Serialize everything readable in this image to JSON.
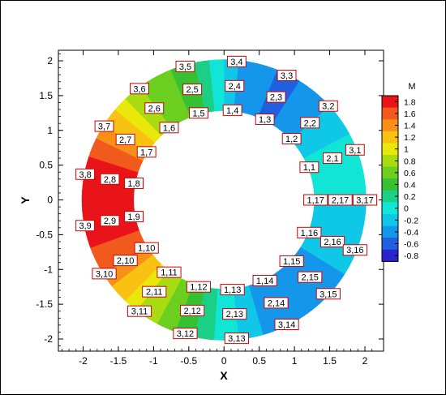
{
  "chart_data": {
    "type": "contour",
    "xlabel": "X",
    "ylabel": "Y",
    "xlim": [
      -2.4,
      2.2
    ],
    "ylim": [
      -2.2,
      2.25
    ],
    "x_ticks": [
      -2,
      -1.5,
      -1,
      -0.5,
      0,
      0.5,
      1,
      1.5,
      2
    ],
    "x_tick_labels": [
      "-2",
      "-1.5",
      "-1",
      "-0.5",
      "0",
      "0.5",
      "1",
      "1.5",
      "2"
    ],
    "y_ticks": [
      2,
      1.5,
      1,
      0.5,
      0,
      -0.5,
      -1,
      -1.5,
      -2
    ],
    "y_tick_labels": [
      "2",
      "1.5",
      "1",
      "0.5",
      "0",
      "-0.5",
      "-1",
      "-1.5",
      "-2"
    ],
    "legend": {
      "title": "M",
      "placement": "right",
      "levels": [
        1.8,
        1.6,
        1.4,
        1.2,
        1,
        0.8,
        0.6,
        0.4,
        0.2,
        0,
        -0.2,
        -0.4,
        -0.6,
        -0.8
      ],
      "labels": [
        "1.8",
        "1.6",
        "1.4",
        "1.2",
        "1",
        "0.8",
        "0.6",
        "0.4",
        "0.2",
        "0",
        "-0.2",
        "-0.4",
        "-0.6",
        "-0.8"
      ],
      "colors": [
        "#e8141a",
        "#f25a1d",
        "#f88f18",
        "#f9c111",
        "#e9e80a",
        "#a8dc12",
        "#6ccf1f",
        "#35c132",
        "#1ccf86",
        "#11e6d6",
        "#0fc8e8",
        "#1496ea",
        "#1f5fe0",
        "#2a24cc"
      ]
    },
    "field_samples": {
      "ring_index": [
        1,
        2,
        3
      ],
      "radius": [
        1.3,
        1.65,
        2.0
      ],
      "angle_index": [
        1,
        2,
        3,
        4,
        5,
        6,
        7,
        8,
        9,
        10,
        11,
        12,
        13,
        14,
        15,
        16,
        17
      ],
      "angle_deg": [
        21.2,
        42.4,
        63.5,
        84.7,
        105.9,
        127.1,
        148.2,
        169.4,
        190.6,
        211.8,
        232.9,
        254.1,
        275.3,
        296.5,
        317.6,
        338.8,
        360.0
      ],
      "M_by_angle": [
        0.0,
        -0.3,
        -0.55,
        -0.3,
        0.4,
        0.7,
        1.3,
        1.9,
        1.9,
        1.5,
        0.9,
        0.4,
        -0.1,
        -0.5,
        -0.4,
        -0.2,
        -0.1
      ]
    },
    "nodes": [
      {
        "label": "1,1",
        "x": 1.21,
        "y": 0.47
      },
      {
        "label": "2,1",
        "x": 1.54,
        "y": 0.6
      },
      {
        "label": "3,1",
        "x": 1.86,
        "y": 0.72
      },
      {
        "label": "1,2",
        "x": 0.96,
        "y": 0.88
      },
      {
        "label": "2,2",
        "x": 1.22,
        "y": 1.11
      },
      {
        "label": "3,2",
        "x": 1.48,
        "y": 1.35
      },
      {
        "label": "1,3",
        "x": 0.58,
        "y": 1.16
      },
      {
        "label": "2,3",
        "x": 0.74,
        "y": 1.48
      },
      {
        "label": "3,3",
        "x": 0.89,
        "y": 1.79
      },
      {
        "label": "1,4",
        "x": 0.12,
        "y": 1.29
      },
      {
        "label": "2,4",
        "x": 0.15,
        "y": 1.64
      },
      {
        "label": "3,4",
        "x": 0.18,
        "y": 1.99
      },
      {
        "label": "1,5",
        "x": -0.36,
        "y": 1.25
      },
      {
        "label": "2,5",
        "x": -0.45,
        "y": 1.59
      },
      {
        "label": "3,5",
        "x": -0.55,
        "y": 1.92
      },
      {
        "label": "1,6",
        "x": -0.78,
        "y": 1.04
      },
      {
        "label": "2,6",
        "x": -0.99,
        "y": 1.32
      },
      {
        "label": "3,6",
        "x": -1.2,
        "y": 1.6
      },
      {
        "label": "1,7",
        "x": -1.1,
        "y": 0.69
      },
      {
        "label": "2,7",
        "x": -1.4,
        "y": 0.87
      },
      {
        "label": "3,7",
        "x": -1.7,
        "y": 1.06
      },
      {
        "label": "1,8",
        "x": -1.28,
        "y": 0.24
      },
      {
        "label": "2,8",
        "x": -1.62,
        "y": 0.3
      },
      {
        "label": "3,8",
        "x": -1.97,
        "y": 0.37
      },
      {
        "label": "1,9",
        "x": -1.28,
        "y": -0.24
      },
      {
        "label": "2,9",
        "x": -1.62,
        "y": -0.3
      },
      {
        "label": "3,9",
        "x": -1.97,
        "y": -0.37
      },
      {
        "label": "1,10",
        "x": -1.1,
        "y": -0.69
      },
      {
        "label": "2,10",
        "x": -1.4,
        "y": -0.87
      },
      {
        "label": "3,10",
        "x": -1.7,
        "y": -1.06
      },
      {
        "label": "1,11",
        "x": -0.78,
        "y": -1.04
      },
      {
        "label": "2,11",
        "x": -0.99,
        "y": -1.32
      },
      {
        "label": "3,11",
        "x": -1.2,
        "y": -1.6
      },
      {
        "label": "1,12",
        "x": -0.36,
        "y": -1.25
      },
      {
        "label": "2,12",
        "x": -0.45,
        "y": -1.59
      },
      {
        "label": "3,12",
        "x": -0.55,
        "y": -1.92
      },
      {
        "label": "1,13",
        "x": 0.12,
        "y": -1.29
      },
      {
        "label": "2,13",
        "x": 0.15,
        "y": -1.64
      },
      {
        "label": "3,13",
        "x": 0.18,
        "y": -1.99
      },
      {
        "label": "1,14",
        "x": 0.58,
        "y": -1.16
      },
      {
        "label": "2,14",
        "x": 0.74,
        "y": -1.48
      },
      {
        "label": "3,14",
        "x": 0.89,
        "y": -1.79
      },
      {
        "label": "1,15",
        "x": 0.96,
        "y": -0.88
      },
      {
        "label": "2,15",
        "x": 1.22,
        "y": -1.11
      },
      {
        "label": "3,15",
        "x": 1.48,
        "y": -1.35
      },
      {
        "label": "1,16",
        "x": 1.21,
        "y": -0.47
      },
      {
        "label": "2,16",
        "x": 1.54,
        "y": -0.6
      },
      {
        "label": "3,16",
        "x": 1.86,
        "y": -0.72
      },
      {
        "label": "1,17",
        "x": 1.3,
        "y": 0.0
      },
      {
        "label": "2,17",
        "x": 1.65,
        "y": 0.0
      },
      {
        "label": "3,17",
        "x": 2.0,
        "y": 0.0
      }
    ]
  }
}
